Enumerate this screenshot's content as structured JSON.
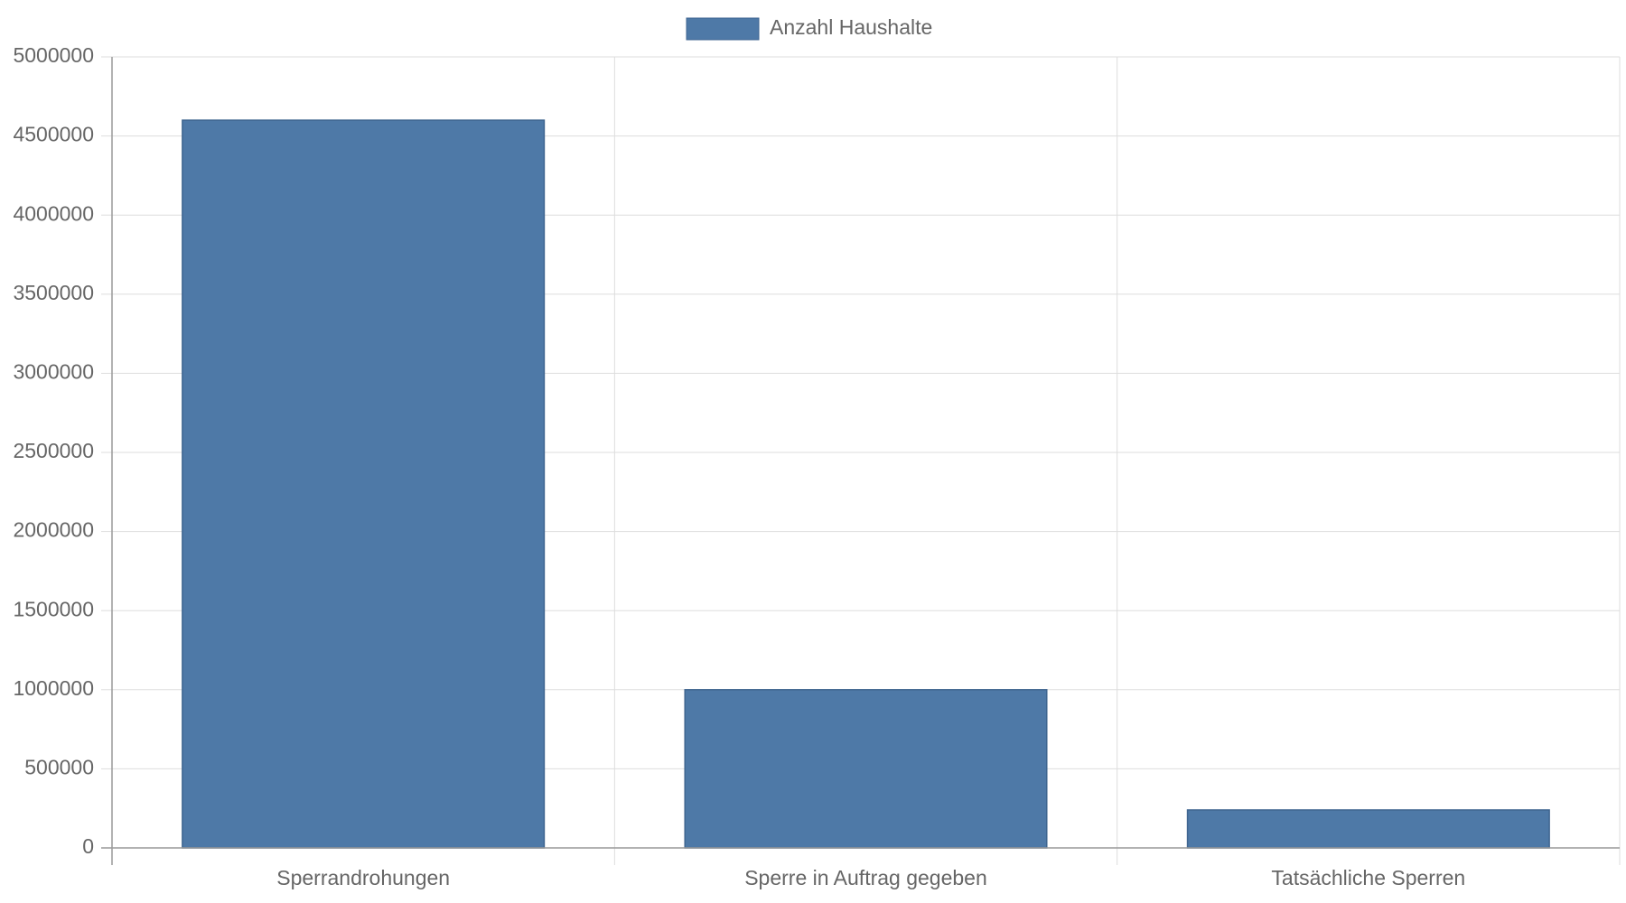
{
  "chart_data": {
    "type": "bar",
    "categories": [
      "Sperrandrohungen",
      "Sperre in Auftrag gegeben",
      "Tatsächliche Sperren"
    ],
    "series": [
      {
        "name": "Anzahl Haushalte",
        "color": "#4e79a7",
        "values": [
          4600000,
          1000000,
          240000
        ]
      }
    ],
    "ylim": [
      0,
      5000000
    ],
    "yticks": [
      0,
      500000,
      1000000,
      1500000,
      2000000,
      2500000,
      3000000,
      3500000,
      4000000,
      4500000,
      5000000
    ],
    "grid": true,
    "legend": "top"
  }
}
